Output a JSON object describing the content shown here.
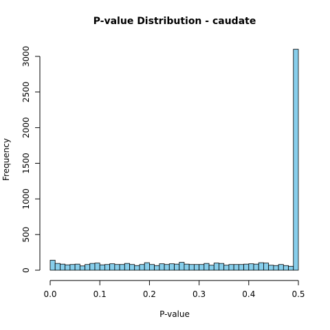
{
  "chart_data": {
    "type": "bar",
    "title": "P-value Distribution - caudate",
    "xlabel": "P-value",
    "ylabel": "Frequency",
    "xlim": [
      0,
      0.5
    ],
    "ylim": [
      0,
      3000
    ],
    "x_ticks": [
      "0.0",
      "0.1",
      "0.2",
      "0.3",
      "0.4",
      "0.5"
    ],
    "x_tick_values": [
      0,
      0.1,
      0.2,
      0.3,
      0.4,
      0.5
    ],
    "y_ticks": [
      "0",
      "500",
      "1000",
      "1500",
      "2000",
      "2500",
      "3000"
    ],
    "y_tick_values": [
      0,
      500,
      1000,
      1500,
      2000,
      2500,
      3000
    ],
    "bin_width": 0.01,
    "bin_starts": [
      0.0,
      0.01,
      0.02,
      0.03,
      0.04,
      0.05,
      0.06,
      0.07,
      0.08,
      0.09,
      0.1,
      0.11,
      0.12,
      0.13,
      0.14,
      0.15,
      0.16,
      0.17,
      0.18,
      0.19,
      0.2,
      0.21,
      0.22,
      0.23,
      0.24,
      0.25,
      0.26,
      0.27,
      0.28,
      0.29,
      0.3,
      0.31,
      0.32,
      0.33,
      0.34,
      0.35,
      0.36,
      0.37,
      0.38,
      0.39,
      0.4,
      0.41,
      0.42,
      0.43,
      0.44,
      0.45,
      0.46,
      0.47,
      0.48,
      0.49
    ],
    "values": [
      140,
      95,
      85,
      75,
      80,
      85,
      60,
      80,
      95,
      100,
      75,
      80,
      90,
      80,
      80,
      95,
      80,
      65,
      80,
      105,
      80,
      65,
      90,
      80,
      90,
      85,
      110,
      85,
      80,
      80,
      80,
      95,
      70,
      100,
      95,
      70,
      80,
      80,
      80,
      85,
      90,
      85,
      105,
      100,
      70,
      65,
      80,
      65,
      55,
      3100
    ],
    "bar_color": "#87CEEB"
  }
}
